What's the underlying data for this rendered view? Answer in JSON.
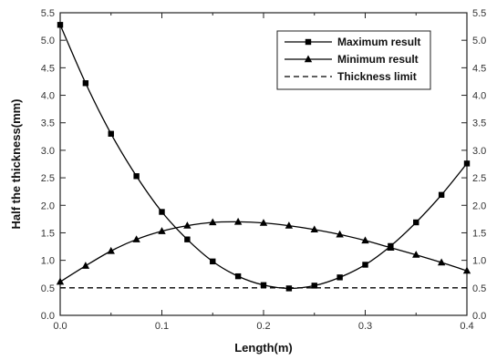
{
  "chart_data": {
    "type": "line",
    "title": "",
    "xlabel": "Length(m)",
    "ylabel": "Half the thickness(mm)",
    "xlim": [
      0.0,
      0.4
    ],
    "ylim": [
      0.0,
      5.5
    ],
    "x_ticks": [
      "0.0",
      "0.1",
      "0.2",
      "0.3",
      "0.4"
    ],
    "y_ticks": [
      "0.0",
      "0.5",
      "1.0",
      "1.5",
      "2.0",
      "2.5",
      "3.0",
      "3.5",
      "4.0",
      "4.5",
      "5.0",
      "5.5"
    ],
    "right_y_ticks": [
      "0.0",
      "0.5",
      "1.0",
      "1.5",
      "2.0",
      "2.5",
      "3.0",
      "3.5",
      "4.0",
      "4.5",
      "5.0",
      "5.5"
    ],
    "grid": false,
    "legend_position": "top-right",
    "series": [
      {
        "name": "Maximum result",
        "marker": "square",
        "line_style": "solid",
        "color": "#000000",
        "x": [
          0.0,
          0.025,
          0.05,
          0.075,
          0.1,
          0.125,
          0.15,
          0.175,
          0.2,
          0.225,
          0.25,
          0.275,
          0.3,
          0.325,
          0.35,
          0.375,
          0.4
        ],
        "y": [
          5.28,
          4.22,
          3.3,
          2.53,
          1.88,
          1.38,
          0.98,
          0.71,
          0.55,
          0.49,
          0.54,
          0.69,
          0.92,
          1.26,
          1.69,
          2.19,
          2.76
        ]
      },
      {
        "name": "Minimum result",
        "marker": "triangle",
        "line_style": "solid",
        "color": "#000000",
        "x": [
          0.0,
          0.025,
          0.05,
          0.075,
          0.1,
          0.125,
          0.15,
          0.175,
          0.2,
          0.225,
          0.25,
          0.275,
          0.3,
          0.325,
          0.35,
          0.375,
          0.4
        ],
        "y": [
          0.61,
          0.9,
          1.17,
          1.38,
          1.53,
          1.63,
          1.69,
          1.7,
          1.68,
          1.63,
          1.56,
          1.47,
          1.36,
          1.23,
          1.1,
          0.96,
          0.81
        ]
      },
      {
        "name": "Thickness limit",
        "marker": "none",
        "line_style": "dashed",
        "color": "#000000",
        "x": [
          0.0,
          0.4
        ],
        "y": [
          0.5,
          0.5
        ]
      }
    ]
  }
}
